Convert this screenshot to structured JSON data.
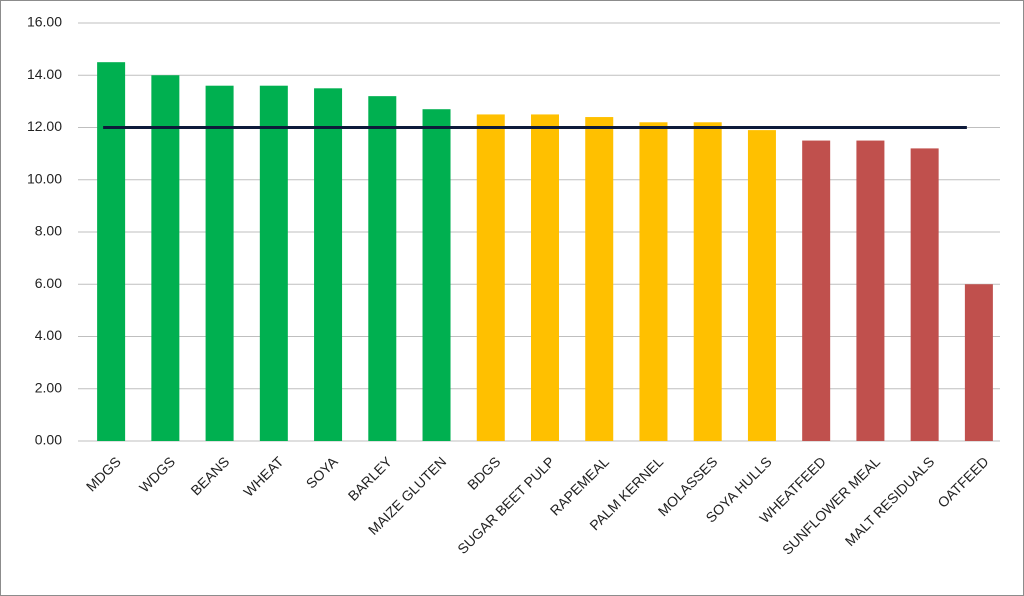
{
  "chart_data": {
    "type": "bar",
    "categories": [
      "MDGS",
      "WDGS",
      "BEANS",
      "WHEAT",
      "SOYA",
      "BARLEY",
      "MAIZE GLUTEN",
      "BDGS",
      "SUGAR BEET PULP",
      "RAPEMEAL",
      "PALM KERNEL",
      "MOLASSES",
      "SOYA HULLS",
      "WHEATFEED",
      "SUNFLOWER MEAL",
      "MALT RESIDUALS",
      "OATFEED"
    ],
    "values": [
      14.5,
      14.0,
      13.6,
      13.6,
      13.5,
      13.2,
      12.7,
      12.5,
      12.5,
      12.4,
      12.2,
      12.2,
      11.9,
      11.5,
      11.5,
      11.2,
      6.0
    ],
    "colors": [
      "#00b050",
      "#00b050",
      "#00b050",
      "#00b050",
      "#00b050",
      "#00b050",
      "#00b050",
      "#ffc000",
      "#ffc000",
      "#ffc000",
      "#ffc000",
      "#ffc000",
      "#ffc000",
      "#c0504d",
      "#c0504d",
      "#c0504d",
      "#c0504d"
    ],
    "reference_line": {
      "value": 12,
      "color": "#0d1a3a"
    },
    "ylim": [
      0,
      16
    ],
    "yticks": [
      {
        "value": 0,
        "label": "0.00"
      },
      {
        "value": 2,
        "label": "2.00"
      },
      {
        "value": 4,
        "label": "4.00"
      },
      {
        "value": 6,
        "label": "6.00"
      },
      {
        "value": 8,
        "label": "8.00"
      },
      {
        "value": 10,
        "label": "10.00"
      },
      {
        "value": 12,
        "label": "12.00"
      },
      {
        "value": 14,
        "label": "14.00"
      },
      {
        "value": 16,
        "label": "16.00"
      }
    ],
    "grid": true
  }
}
